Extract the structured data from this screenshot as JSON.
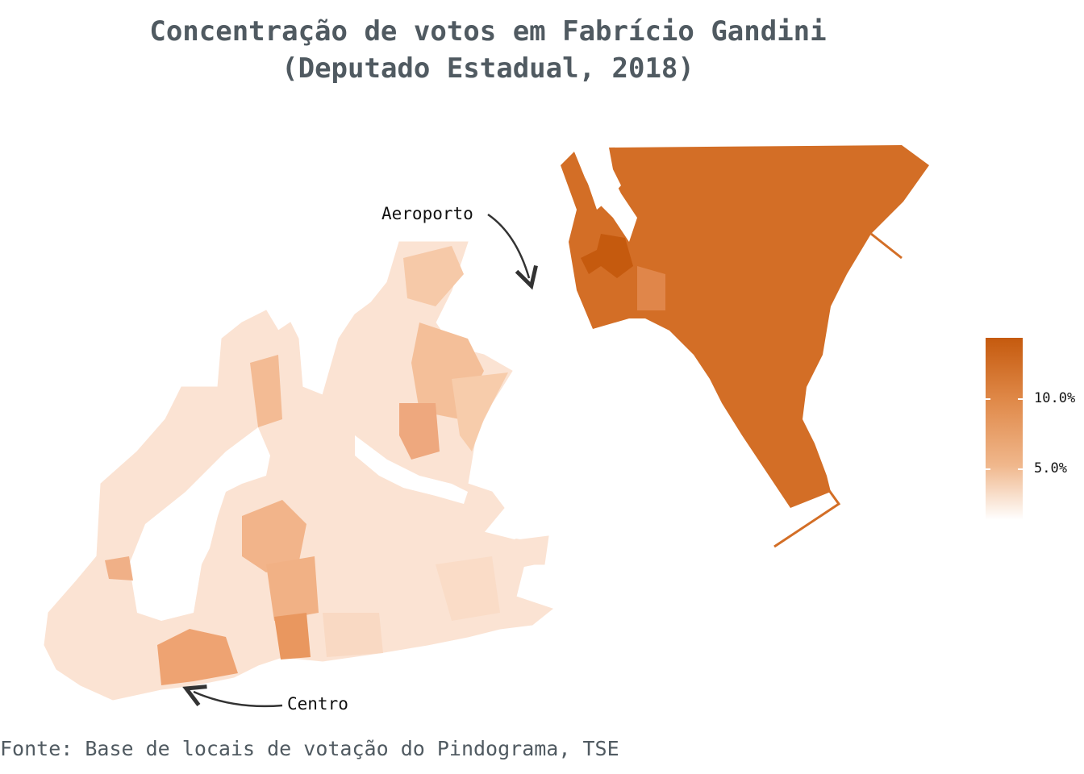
{
  "title": {
    "line1": "Concentração de votos em Fabrício Gandini",
    "line2": "(Deputado Estadual, 2018)"
  },
  "annotations": {
    "aeroporto": "Aeroporto",
    "centro": "Centro"
  },
  "legend": {
    "labels": [
      "10.0%",
      "5.0%"
    ],
    "color_high": "#c55a0e",
    "color_low": "#ffffff"
  },
  "caption": "Fonte: Base de locais de votação do Pindograma, TSE",
  "colors": {
    "high_region": "#d36e26",
    "darkest": "#c55a0e",
    "mid": "#e0864a",
    "light": "#f8d8c2",
    "very_light": "#fdeee4"
  }
}
